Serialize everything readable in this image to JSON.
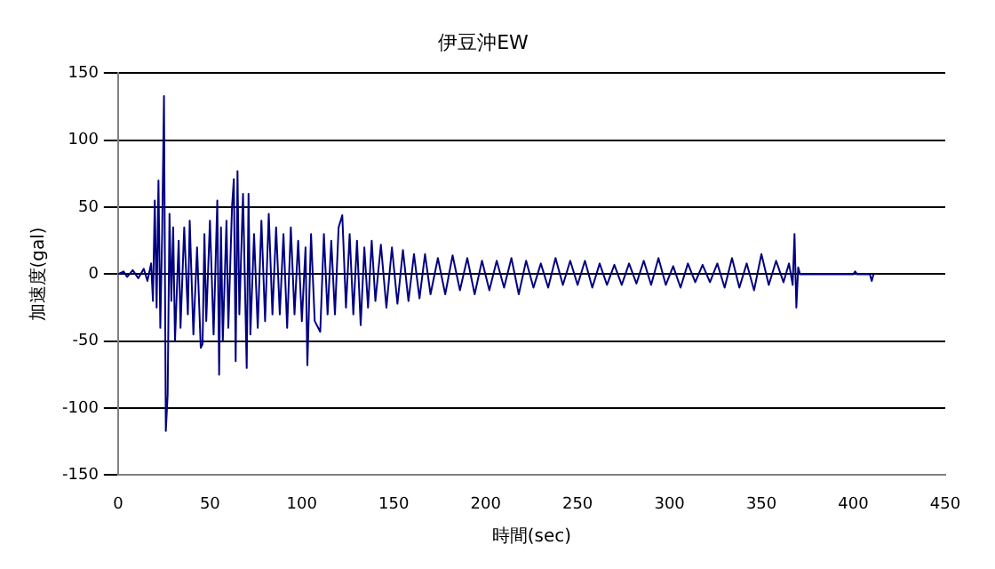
{
  "chart_data": {
    "type": "line",
    "title": "伊豆沖EW",
    "xlabel": "時間(sec)",
    "ylabel": "加速度(gal)",
    "xlim": [
      0,
      450
    ],
    "xticks": [
      0,
      50,
      100,
      150,
      200,
      250,
      300,
      350,
      400,
      450
    ],
    "ylim": [
      -150,
      150
    ],
    "yticks": [
      -150,
      -100,
      -50,
      0,
      50,
      100,
      150
    ],
    "grid": "y",
    "legend": false,
    "marker": "none",
    "line_style": "solid",
    "series": [
      {
        "color": "#000080",
        "x": [
          0,
          3,
          5,
          8,
          11,
          14,
          16,
          18,
          19,
          20,
          21,
          22,
          23,
          24,
          25,
          26,
          27,
          28,
          29,
          30,
          31,
          33,
          34,
          36,
          38,
          39,
          41,
          43,
          45,
          46,
          47,
          48,
          50,
          52,
          54,
          55,
          56,
          57,
          59,
          60,
          62,
          63,
          64,
          65,
          66,
          68,
          70,
          71,
          72,
          74,
          76,
          78,
          80,
          82,
          84,
          86,
          88,
          90,
          92,
          94,
          96,
          98,
          100,
          102,
          103,
          105,
          107,
          110,
          112,
          114,
          116,
          118,
          120,
          122,
          124,
          126,
          128,
          130,
          132,
          134,
          136,
          138,
          140,
          143,
          146,
          149,
          152,
          155,
          158,
          161,
          164,
          167,
          170,
          174,
          178,
          182,
          186,
          190,
          194,
          198,
          202,
          206,
          210,
          214,
          218,
          222,
          226,
          230,
          234,
          238,
          242,
          246,
          250,
          254,
          258,
          262,
          266,
          270,
          274,
          278,
          282,
          286,
          290,
          294,
          298,
          302,
          306,
          310,
          314,
          318,
          322,
          326,
          330,
          334,
          338,
          342,
          346,
          350,
          354,
          358,
          362,
          365,
          367,
          368,
          369,
          370,
          371,
          400,
          401,
          402,
          409,
          410,
          411
        ],
        "values": [
          0,
          2,
          -2,
          3,
          -3,
          4,
          -5,
          8,
          -20,
          55,
          -25,
          70,
          -40,
          30,
          133,
          -117,
          -90,
          45,
          -20,
          35,
          -50,
          25,
          -40,
          35,
          -30,
          40,
          -45,
          20,
          -55,
          -52,
          30,
          -35,
          40,
          -45,
          55,
          -75,
          35,
          -50,
          40,
          -40,
          50,
          71,
          -65,
          77,
          -30,
          60,
          -70,
          60,
          -45,
          30,
          -40,
          40,
          -35,
          45,
          -30,
          35,
          -30,
          30,
          -40,
          35,
          -30,
          25,
          -35,
          20,
          -68,
          30,
          -35,
          -43,
          30,
          -30,
          25,
          -30,
          35,
          44,
          -25,
          30,
          -30,
          25,
          -38,
          20,
          -25,
          25,
          -20,
          22,
          -25,
          20,
          -22,
          18,
          -20,
          15,
          -18,
          15,
          -15,
          12,
          -15,
          14,
          -12,
          12,
          -15,
          10,
          -12,
          10,
          -10,
          12,
          -15,
          10,
          -10,
          8,
          -10,
          12,
          -8,
          10,
          -8,
          10,
          -10,
          8,
          -8,
          7,
          -8,
          8,
          -7,
          10,
          -8,
          12,
          -8,
          6,
          -10,
          8,
          -6,
          7,
          -6,
          8,
          -10,
          12,
          -10,
          8,
          -12,
          15,
          -8,
          10,
          -6,
          8,
          -8,
          30,
          -25,
          5,
          0,
          0,
          2,
          0,
          0,
          -5,
          0
        ]
      }
    ]
  }
}
